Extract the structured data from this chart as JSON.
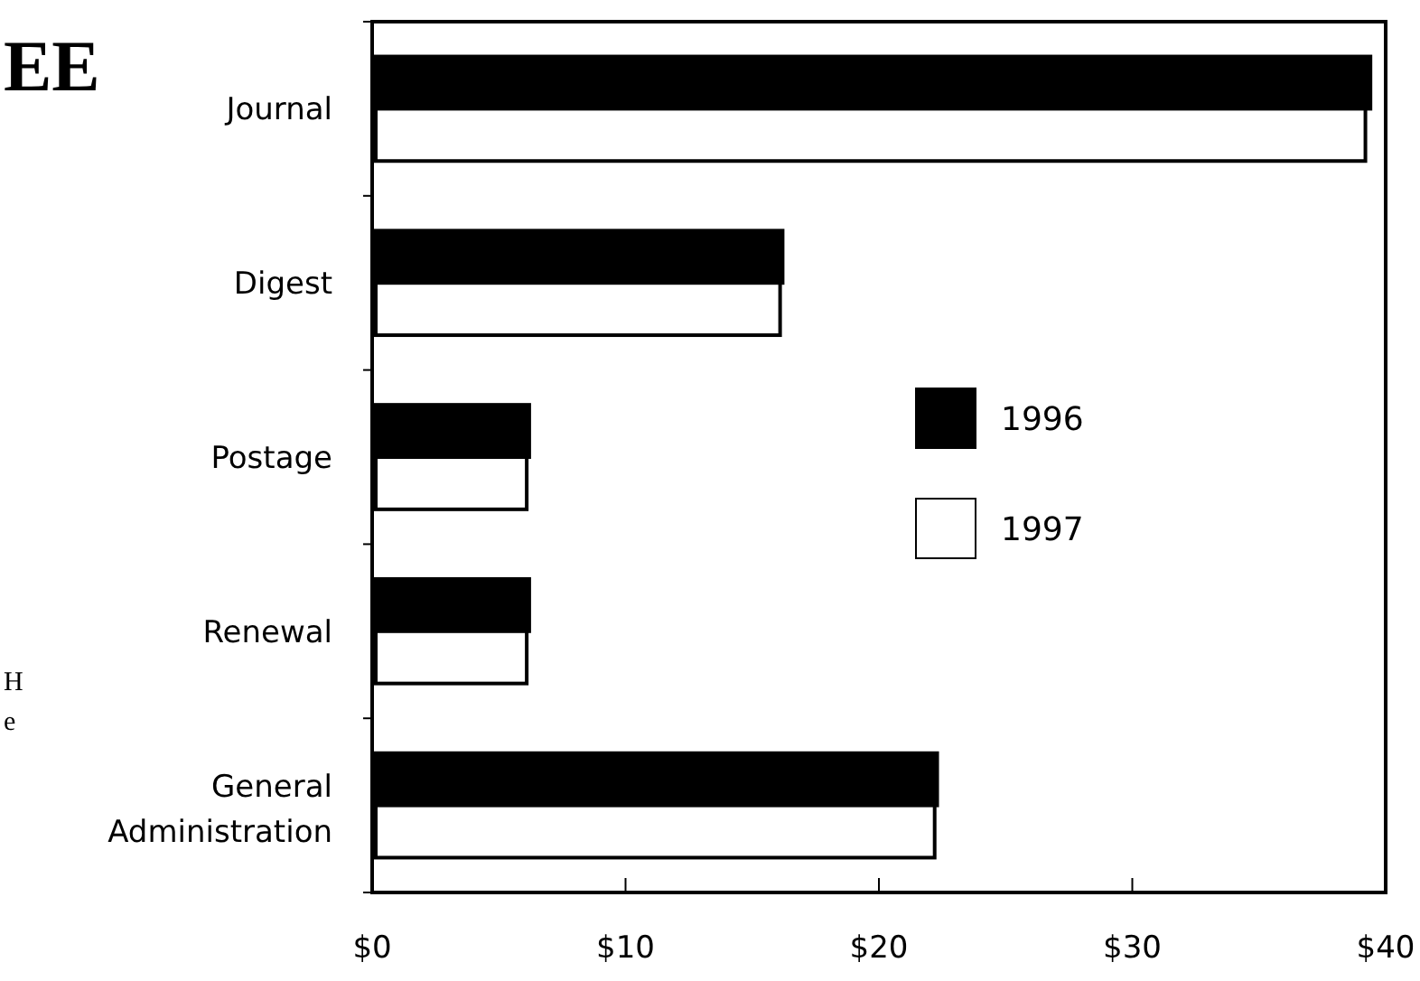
{
  "chart_data": {
    "type": "bar",
    "orientation": "horizontal",
    "title": "EE",
    "annotations": [
      "H",
      "e"
    ],
    "categories": [
      "Journal",
      "Digest",
      "Postage",
      "Renewal",
      "General Administration"
    ],
    "series": [
      {
        "name": "1996",
        "color": "#000000",
        "values": [
          39.4,
          16.2,
          6.2,
          6.2,
          22.3
        ]
      },
      {
        "name": "1997",
        "color": "#ffffff",
        "values": [
          39.2,
          16.1,
          6.1,
          6.1,
          22.2
        ]
      }
    ],
    "xlim": [
      0,
      40
    ],
    "xticks": [
      {
        "value": 0,
        "label": "$0"
      },
      {
        "value": 10,
        "label": "$10"
      },
      {
        "value": 20,
        "label": "$20"
      },
      {
        "value": 30,
        "label": "$30"
      },
      {
        "value": 40,
        "label": "$40"
      }
    ],
    "legend": "right",
    "grid": false
  }
}
